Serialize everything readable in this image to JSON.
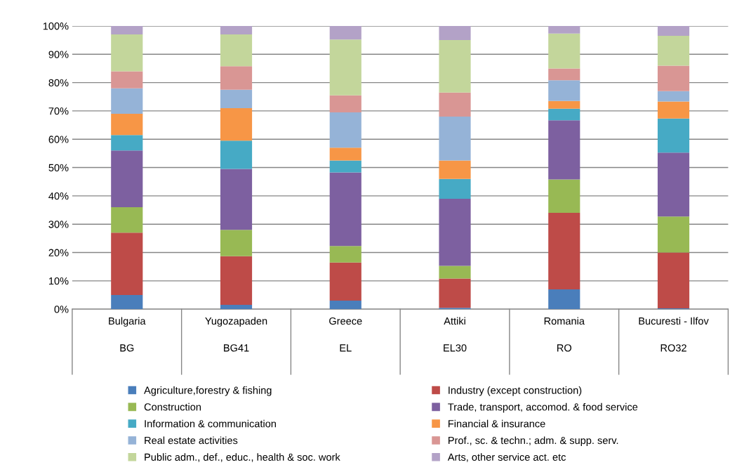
{
  "chart_data": {
    "type": "bar",
    "stacked": true,
    "categories": [
      "Bulgaria\nBG",
      "Yugozapaden\nBG41",
      "Greece\nEL",
      "Attiki\nEL30",
      "Romania\nRO",
      "Bucuresti - Ilfov\nRO32"
    ],
    "series": [
      {
        "name": "Agriculture,forestry & fishing",
        "color": "#4a7ebb",
        "values": [
          5,
          1.5,
          3,
          0.5,
          7,
          0.3
        ]
      },
      {
        "name": "Industry (except construction)",
        "color": "#be4b48",
        "values": [
          22,
          17.2,
          13.5,
          10.3,
          27,
          19.7
        ]
      },
      {
        "name": "Construction",
        "color": "#98b954",
        "values": [
          9,
          9.3,
          5.8,
          4.5,
          11.8,
          12.7
        ]
      },
      {
        "name": "Trade, transport, accomod. & food service",
        "color": "#7d60a0",
        "values": [
          20,
          21.5,
          26,
          23.7,
          20.9,
          22.6
        ]
      },
      {
        "name": "Information & communication",
        "color": "#46aac5",
        "values": [
          5.5,
          10,
          4.2,
          7,
          4.1,
          12
        ]
      },
      {
        "name": "Financial & insurance",
        "color": "#f79646",
        "values": [
          7.5,
          11.5,
          4.5,
          6.5,
          2.7,
          6
        ]
      },
      {
        "name": "Real estate activities",
        "color": "#95b3d7",
        "values": [
          9,
          6.5,
          12.5,
          15.5,
          7.3,
          3.7
        ]
      },
      {
        "name": "Prof., sc. & techn.; adm. & supp. serv.",
        "color": "#d99694",
        "values": [
          6,
          8.3,
          6,
          8.5,
          4.2,
          9
        ]
      },
      {
        "name": "Public adm., def., educ., health & soc. work",
        "color": "#c3d69b",
        "values": [
          13,
          11.2,
          19.7,
          18.5,
          12.3,
          10.5
        ]
      },
      {
        "name": "Arts, other service act. etc",
        "color": "#b3a2c7",
        "values": [
          3,
          3,
          4.8,
          5,
          2.7,
          3.5
        ]
      }
    ],
    "ylim": [
      0,
      100
    ],
    "yticks": [
      {
        "value": 0,
        "label": "0%"
      },
      {
        "value": 10,
        "label": "10%"
      },
      {
        "value": 20,
        "label": "20%"
      },
      {
        "value": 30,
        "label": "30%"
      },
      {
        "value": 40,
        "label": "40%"
      },
      {
        "value": 50,
        "label": "50%"
      },
      {
        "value": 60,
        "label": "60%"
      },
      {
        "value": 70,
        "label": "70%"
      },
      {
        "value": 80,
        "label": "80%"
      },
      {
        "value": 90,
        "label": "90%"
      },
      {
        "value": 100,
        "label": "100%"
      }
    ],
    "grid": "y",
    "legend": "bottom"
  }
}
